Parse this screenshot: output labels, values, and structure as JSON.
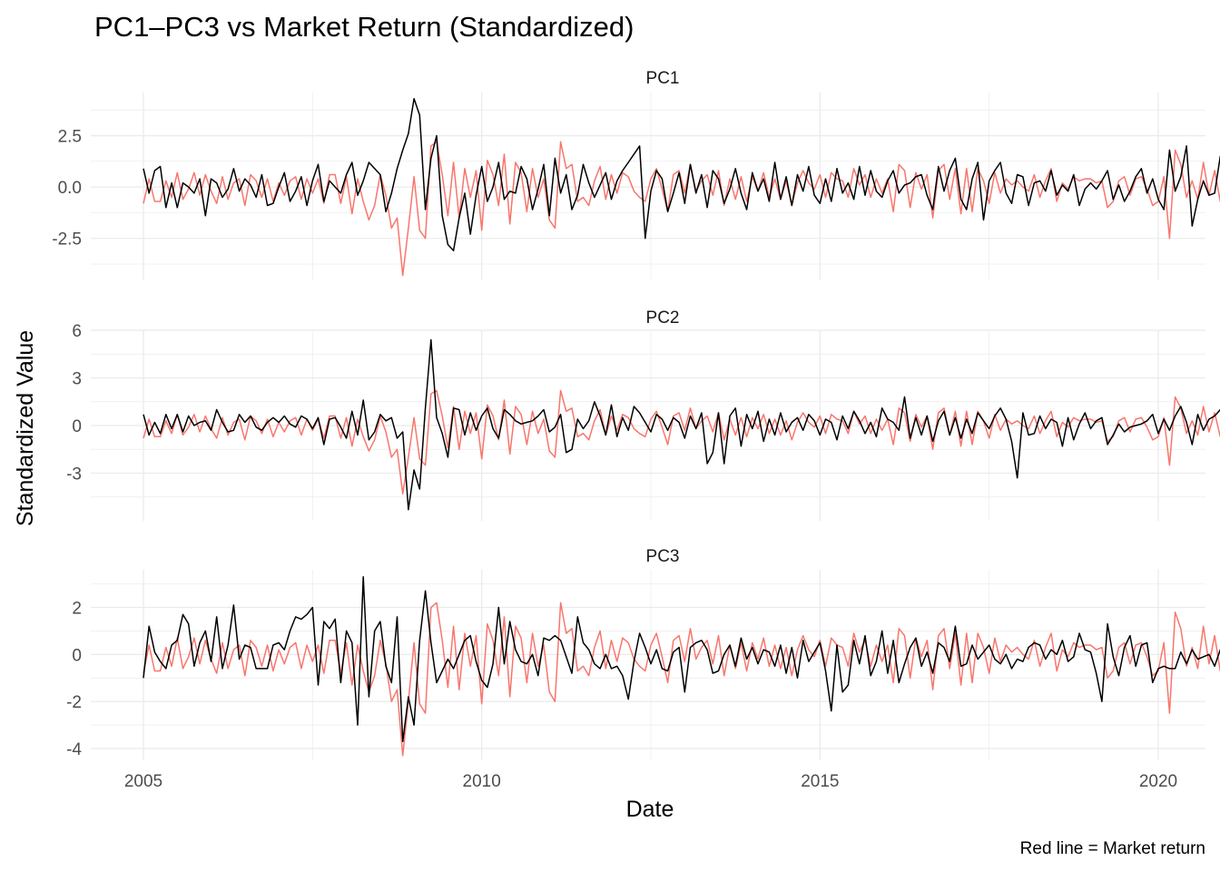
{
  "chart_data": {
    "type": "line",
    "title": "PC1–PC3 vs Market Return (Standardized)",
    "xlabel": "Date",
    "ylabel": "Standardized Value",
    "caption": "Red line = Market return",
    "x_range": [
      "2004-06",
      "2020-06"
    ],
    "x_ticks": [
      "2005",
      "2010",
      "2015",
      "2020"
    ],
    "grid": true,
    "legend": "none",
    "colors": {
      "market": "#F8766D",
      "pc": "#000000",
      "grid": "#ebebeb"
    },
    "market_return": [
      -0.8,
      0.4,
      -0.7,
      -0.7,
      0.3,
      -0.5,
      0.7,
      -0.6,
      -0.1,
      0.7,
      -0.4,
      0.6,
      -0.2,
      -0.8,
      0.5,
      -0.6,
      0.2,
      0.4,
      -0.9,
      0.6,
      0.3,
      -0.5,
      0.4,
      -0.7,
      0.2,
      -0.4,
      0.3,
      0.5,
      -0.6,
      0.4,
      -0.3,
      0.4,
      -0.8,
      0.6,
      0.6,
      -0.8,
      0.5,
      -1.3,
      0.4,
      -0.7,
      -1.6,
      -0.9,
      0.6,
      -0.4,
      -2.0,
      -1.5,
      -4.3,
      -2.0,
      0.5,
      -2.1,
      -2.5,
      2.0,
      2.2,
      0.6,
      -1.4,
      1.2,
      -1.5,
      0.9,
      -0.5,
      0.8,
      -2.1,
      1.3,
      0.6,
      -0.9,
      1.6,
      -1.8,
      1.2,
      0.7,
      -1.2,
      0.9,
      -0.5,
      0.4,
      -1.6,
      -2.0,
      2.2,
      0.9,
      1.1,
      -0.7,
      -0.5,
      -0.9,
      0.3,
      1.0,
      -0.6,
      0.6,
      -0.3,
      0.7,
      0.5,
      -0.2,
      -0.5,
      -0.7,
      0.4,
      0.9,
      -0.1,
      -1.2,
      0.6,
      0.8,
      -0.3,
      1.1,
      -0.2,
      0.3,
      0.6,
      -0.4,
      0.8,
      -0.9,
      0.4,
      -0.6,
      0.5,
      -0.7,
      0.5,
      -0.2,
      0.7,
      -0.5,
      0.4,
      -0.6,
      0.3,
      -0.9,
      0.2,
      0.8,
      0.2,
      -0.1,
      0.6,
      -0.5,
      0.7,
      0.4,
      0.3,
      -0.5,
      0.9,
      0.1,
      0.6,
      -0.5,
      0.4,
      -0.3,
      0.4,
      -1.2,
      1.1,
      0.8,
      -1.0,
      0.7,
      -0.1,
      0.6,
      -1.5,
      0.8,
      1.1,
      -0.6,
      0.9,
      -1.3,
      0.9,
      -1.2,
      0.9,
      0.3,
      -0.8,
      0.7,
      -0.3,
      0.4,
      0.1,
      0.3,
      0.0,
      -0.2,
      0.6,
      -0.5,
      0.3,
      0.9,
      -0.7,
      0.2,
      -0.1,
      0.5,
      0.3,
      0.4,
      0.4,
      0.2,
      0.3,
      -1.0,
      -0.7,
      0.3,
      0.5,
      -0.4,
      0.4,
      0.5,
      -0.1,
      -0.9,
      -0.7,
      0.5,
      -2.5,
      1.8,
      1.1,
      -0.5,
      0.3,
      -0.6,
      1.2,
      -0.4,
      0.8,
      -0.7,
      0.1,
      0.3,
      0.7,
      0.5
    ],
    "panels": [
      {
        "name": "PC1",
        "y_ticks": [
          "2.5",
          "0.0",
          "-2.5"
        ],
        "y_tick_values": [
          2.5,
          0,
          -2.5
        ],
        "ylim": [
          -4.5,
          4.6
        ],
        "values": [
          0.9,
          -0.3,
          0.8,
          1.0,
          -1.0,
          0.2,
          -1.0,
          0.2,
          0.0,
          -0.3,
          0.4,
          -1.4,
          0.4,
          0.2,
          -0.5,
          -0.1,
          0.9,
          -0.2,
          0.4,
          0.1,
          -0.5,
          0.6,
          -0.9,
          -0.8,
          0.0,
          0.7,
          -0.7,
          -0.2,
          0.5,
          -0.9,
          0.3,
          1.1,
          -0.7,
          0.3,
          0.0,
          -0.3,
          0.6,
          1.2,
          -0.4,
          0.3,
          1.2,
          0.9,
          0.6,
          -1.2,
          -0.3,
          0.9,
          1.8,
          2.6,
          4.3,
          3.5,
          -1.1,
          1.4,
          2.5,
          -1.4,
          -2.8,
          -3.1,
          -1.5,
          -0.3,
          -2.3,
          -0.4,
          1.0,
          -0.7,
          0.0,
          1.2,
          -0.6,
          -0.2,
          -0.3,
          1.0,
          0.4,
          -1.1,
          -0.1,
          1.1,
          -1.4,
          1.4,
          -0.3,
          0.6,
          -1.1,
          -0.4,
          1.1,
          0.2,
          -0.5,
          0.1,
          0.7,
          -0.6,
          0.3,
          0.8,
          1.2,
          1.6,
          2.0,
          -2.5,
          -0.2,
          0.8,
          0.4,
          -1.2,
          -0.3,
          0.7,
          -0.8,
          1.1,
          -0.3,
          0.6,
          -1.0,
          0.8,
          0.4,
          -0.8,
          -0.1,
          0.9,
          -0.3,
          -1.1,
          0.7,
          -0.2,
          0.4,
          -0.7,
          1.2,
          -0.6,
          0.5,
          -0.9,
          0.6,
          -0.2,
          1.0,
          -0.4,
          -0.8,
          0.4,
          -0.7,
          0.9,
          -0.3,
          0.2,
          -0.6,
          1.0,
          -0.4,
          0.8,
          -0.2,
          -0.5,
          0.3,
          0.8,
          -0.3,
          0.1,
          0.2,
          0.5,
          0.6,
          -0.4,
          -1.1,
          1.0,
          -0.2,
          0.8,
          1.4,
          -0.6,
          -1.1,
          0.4,
          1.2,
          -1.6,
          0.3,
          0.8,
          1.2,
          -0.3,
          -0.8,
          0.6,
          0.5,
          -0.9,
          0.2,
          0.3,
          -0.2,
          0.8,
          -0.4,
          0.1,
          -0.2,
          0.6,
          -0.9,
          -0.1,
          0.2,
          -0.1,
          0.3,
          0.8,
          -0.6,
          0.1,
          -0.7,
          -0.2,
          0.5,
          0.9,
          -0.3,
          0.4,
          -0.6,
          -1.1,
          1.8,
          -0.2,
          0.5,
          2.0,
          -1.9,
          -0.6,
          0.3,
          -0.4,
          -0.3,
          1.5,
          -1.0,
          0.8,
          -0.2,
          -0.6,
          1.1,
          -0.3,
          -0.2,
          -0.4,
          -0.3
        ],
        "xlabels_shown": false
      },
      {
        "name": "PC2",
        "y_ticks": [
          "6",
          "3",
          "0",
          "-3"
        ],
        "y_tick_values": [
          6,
          3,
          0,
          -3
        ],
        "ylim": [
          -6.0,
          6.0
        ],
        "values": [
          0.7,
          -0.6,
          0.2,
          -0.5,
          0.7,
          -0.2,
          0.7,
          -0.4,
          0.6,
          0.0,
          0.2,
          0.3,
          -0.3,
          1.0,
          0.2,
          -0.4,
          -0.3,
          0.7,
          0.2,
          0.6,
          -0.1,
          -0.3,
          0.2,
          0.5,
          0.2,
          0.6,
          0.1,
          -0.1,
          0.6,
          0.4,
          -0.2,
          0.5,
          -1.2,
          0.4,
          0.5,
          -0.1,
          -0.8,
          0.9,
          -0.6,
          1.6,
          -0.9,
          -0.4,
          0.7,
          0.3,
          0.5,
          -0.8,
          -0.4,
          -5.3,
          -2.8,
          -4.0,
          1.1,
          5.4,
          0.5,
          -0.5,
          -2.0,
          1.1,
          1.0,
          -0.6,
          0.8,
          -0.3,
          0.6,
          1.1,
          -0.2,
          -0.8,
          1.0,
          0.7,
          0.3,
          0.1,
          0.2,
          0.3,
          0.6,
          1.0,
          -0.4,
          -0.1,
          0.7,
          -1.7,
          -1.5,
          0.4,
          -0.2,
          0.3,
          1.5,
          0.6,
          -0.6,
          1.3,
          -0.7,
          0.5,
          -0.3,
          1.2,
          0.8,
          0.2,
          -0.4,
          0.7,
          0.4,
          -0.3,
          0.5,
          0.2,
          -0.8,
          0.6,
          -0.2,
          0.8,
          -2.4,
          -1.7,
          0.8,
          -2.4,
          0.6,
          1.1,
          -1.3,
          0.7,
          -0.2,
          0.9,
          -1.0,
          0.4,
          -0.6,
          0.8,
          -0.4,
          0.2,
          0.5,
          -0.3,
          0.7,
          0.3,
          -0.6,
          0.4,
          0.2,
          -0.9,
          0.6,
          -0.2,
          0.9,
          0.3,
          -0.5,
          0.2,
          -0.7,
          1.1,
          0.4,
          0.2,
          -0.3,
          1.8,
          -0.8,
          0.5,
          -0.6,
          0.6,
          -1.0,
          0.3,
          0.9,
          -0.6,
          0.5,
          -0.8,
          0.4,
          -0.5,
          0.8,
          0.3,
          -0.2,
          0.6,
          1.1,
          0.4,
          -1.0,
          -3.3,
          0.8,
          -0.6,
          -0.5,
          0.6,
          -0.2,
          0.4,
          0.2,
          -1.3,
          0.5,
          -0.9,
          0.1,
          0.8,
          -0.2,
          0.3,
          0.5,
          -1.2,
          -0.6,
          0.1,
          -0.4,
          -0.1,
          0.0,
          0.1,
          0.3,
          0.7,
          -0.5,
          0.4,
          -0.3,
          0.6,
          1.2,
          0.2,
          -1.2,
          0.7,
          -0.3,
          0.4,
          0.6,
          1.0,
          -0.5,
          -0.4,
          -0.6,
          -0.3,
          0.0
        ],
        "xlabels_shown": false
      },
      {
        "name": "PC3",
        "y_ticks": [
          "2",
          "0",
          "-2",
          "-4"
        ],
        "y_tick_values": [
          2,
          0,
          -2,
          -4
        ],
        "ylim": [
          -4.5,
          3.6
        ],
        "values": [
          -1.0,
          1.2,
          0.1,
          -0.3,
          -0.6,
          0.4,
          0.6,
          1.7,
          1.3,
          -0.5,
          0.5,
          1.0,
          -0.3,
          1.6,
          -0.6,
          0.4,
          2.1,
          -0.2,
          0.4,
          0.3,
          -0.6,
          -0.6,
          -0.6,
          0.4,
          0.5,
          0.2,
          1.0,
          1.6,
          1.5,
          1.7,
          2.0,
          -1.3,
          1.4,
          1.1,
          1.5,
          -1.2,
          1.0,
          0.5,
          -3.0,
          3.3,
          -1.8,
          1.0,
          1.4,
          -0.5,
          -1.2,
          1.6,
          -3.7,
          -1.8,
          -3.0,
          0.6,
          2.7,
          0.5,
          -1.2,
          -0.7,
          -0.2,
          -0.6,
          0.0,
          0.6,
          0.8,
          -0.3,
          -1.1,
          -1.4,
          -0.4,
          2.0,
          -0.4,
          1.4,
          0.2,
          -0.3,
          -0.4,
          0.0,
          -0.9,
          0.7,
          0.6,
          0.8,
          0.6,
          -0.1,
          -0.8,
          1.6,
          0.5,
          0.2,
          -0.4,
          -0.6,
          0.0,
          -0.6,
          -0.5,
          -0.9,
          -1.9,
          -0.3,
          0.9,
          0.3,
          -0.4,
          0.2,
          -0.6,
          -0.7,
          0.1,
          0.3,
          -1.6,
          0.3,
          0.5,
          0.6,
          0.2,
          -0.8,
          -0.7,
          0.0,
          0.4,
          -0.5,
          0.7,
          -0.2,
          0.3,
          -0.4,
          0.2,
          0.1,
          -0.5,
          0.4,
          -0.8,
          0.3,
          -1.0,
          0.6,
          -0.3,
          0.1,
          0.5,
          -0.7,
          -2.4,
          0.4,
          -1.6,
          -1.3,
          0.6,
          -0.4,
          0.8,
          -0.9,
          -0.3,
          1.0,
          -0.8,
          0.6,
          -1.2,
          -0.4,
          0.3,
          0.7,
          -0.5,
          0.1,
          -0.8,
          0.5,
          0.3,
          -0.3,
          1.2,
          -0.5,
          -0.4,
          0.4,
          -0.2,
          0.1,
          0.4,
          -0.2,
          -0.4,
          0.0,
          -0.6,
          -0.2,
          -0.3,
          0.3,
          0.5,
          0.4,
          -0.2,
          0.2,
          0.0,
          0.6,
          -0.3,
          -0.1,
          0.9,
          0.2,
          0.1,
          -0.8,
          -2.0,
          1.3,
          -0.1,
          -0.9,
          0.3,
          0.8,
          -0.5,
          0.4,
          0.5,
          -1.2,
          -0.6,
          -0.5,
          -0.6,
          -0.6,
          0.1,
          -0.4,
          0.2,
          -0.2,
          -0.1,
          0.0,
          -0.5,
          0.2,
          -0.4,
          -0.3,
          -0.3,
          -0.2,
          -0.6,
          -0.3,
          0.1
        ],
        "xlabels_shown": true
      }
    ]
  }
}
